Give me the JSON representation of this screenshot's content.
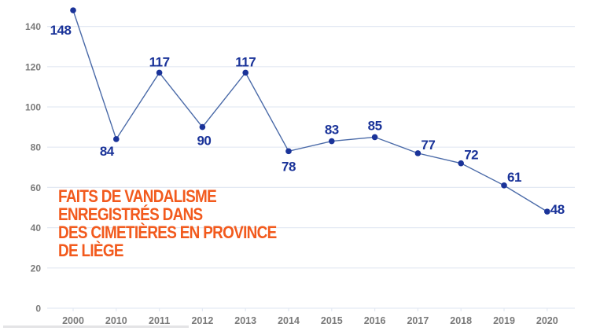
{
  "chart_data": {
    "type": "line",
    "title": "FAITS DE VANDALISME ENREGISTRÉS DANS DES CIMETIÈRES EN PROVINCE DE LIÈGE",
    "title_lines": [
      "FAITS DE VANDALISME",
      "ENREGISTRÉS DANS",
      "DES CIMETIÈRES EN PROVINCE",
      "DE LIÈGE"
    ],
    "xlabel": "",
    "ylabel": "",
    "categories": [
      "2000",
      "2010",
      "2011",
      "2012",
      "2013",
      "2014",
      "2015",
      "2016",
      "2017",
      "2018",
      "2019",
      "2020"
    ],
    "series": [
      {
        "name": "Faits de vandalisme",
        "values": [
          148,
          84,
          117,
          90,
          117,
          78,
          83,
          85,
          77,
          72,
          61,
          48
        ]
      }
    ],
    "yticks": [
      0,
      20,
      40,
      60,
      80,
      100,
      120,
      140
    ],
    "ylim": [
      0,
      150
    ],
    "grid": true,
    "legend": "none",
    "data_labels": true
  },
  "colors": {
    "line": "#4a6aa8",
    "point": "#1a3399",
    "label": "#1a3399",
    "title": "#f25a1d",
    "grid": "#e3e9f3",
    "axis_text": "#7a7a7a"
  }
}
